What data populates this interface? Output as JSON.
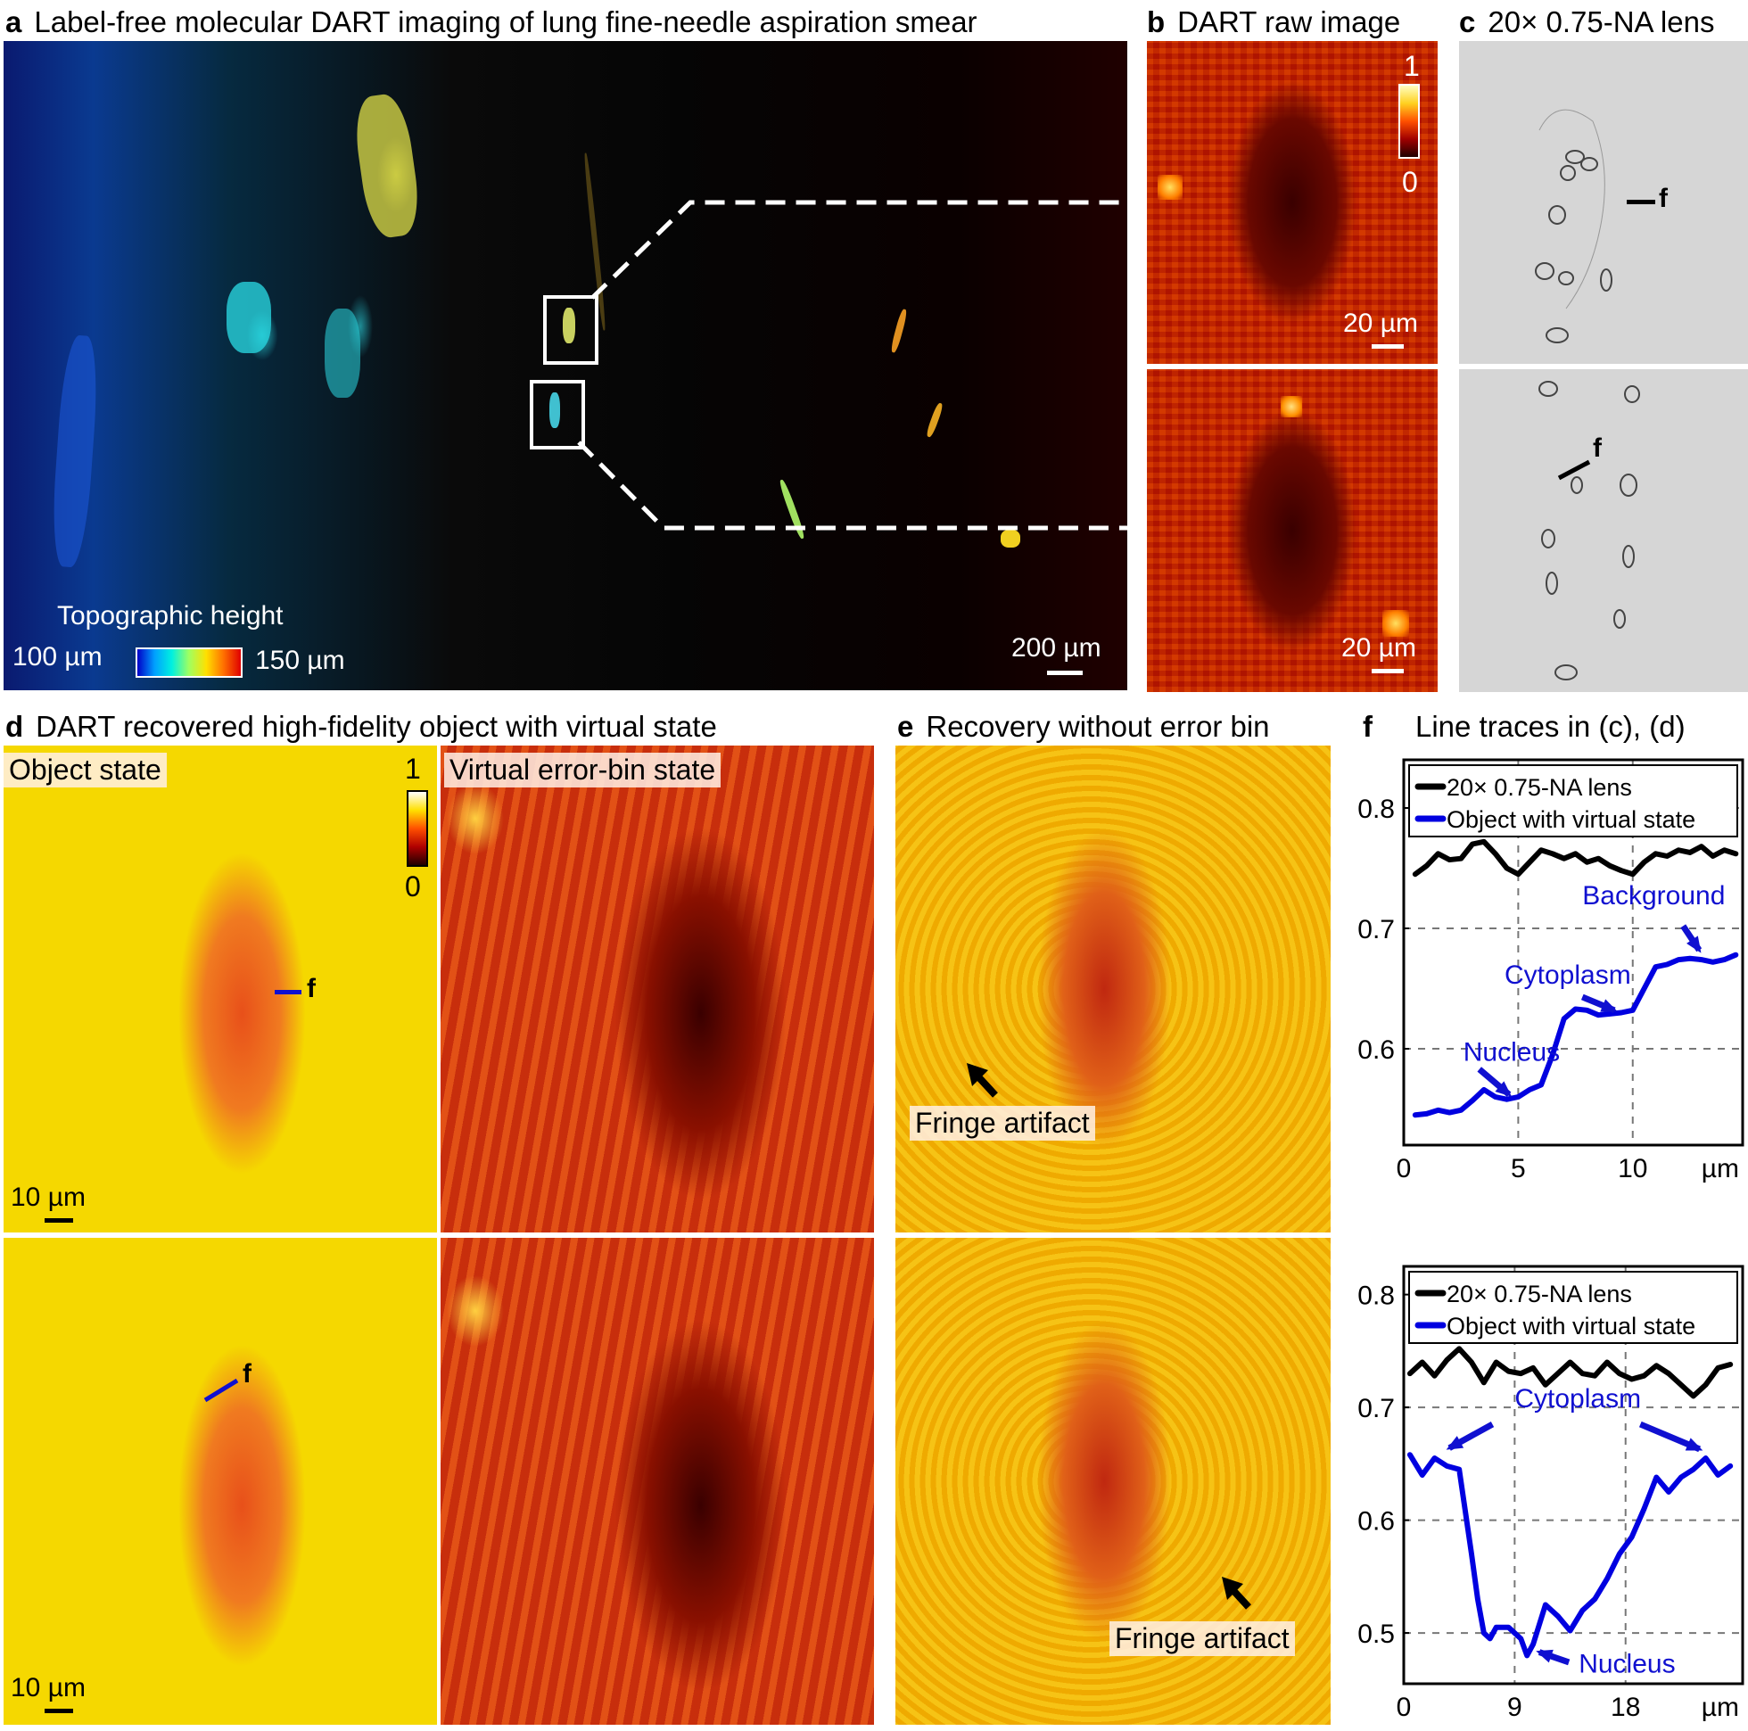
{
  "panels": {
    "a": {
      "letter": "a",
      "title": "Label-free molecular DART imaging of lung fine-needle aspiration smear",
      "colorbar_title": "Topographic height",
      "colorbar_min": "100 µm",
      "colorbar_max": "150 µm",
      "scalebar": "200 µm",
      "colormap": [
        "#0000c8",
        "#00a0ff",
        "#00f0e0",
        "#a0ff60",
        "#ffe000",
        "#ff7000",
        "#e00000"
      ]
    },
    "b": {
      "letter": "b",
      "title": "DART raw image",
      "colorbar_max": "1",
      "colorbar_min": "0",
      "scalebar_top": "20 µm",
      "scalebar_bottom": "20 µm"
    },
    "c": {
      "letter": "c",
      "title": "20× 0.75-NA lens",
      "trace_marker_top": "f",
      "trace_marker_bottom": "f"
    },
    "d": {
      "letter": "d",
      "title": "DART recovered high-fidelity object with virtual state",
      "label_object": "Object state",
      "label_virtual": "Virtual error-bin state",
      "colorbar_max": "1",
      "colorbar_min": "0",
      "scalebar_top": "10 µm",
      "scalebar_bottom": "10 µm",
      "trace_marker_top": "f",
      "trace_marker_bottom": "f"
    },
    "e": {
      "letter": "e",
      "title": "Recovery without error bin",
      "annotation_top": "Fringe artifact",
      "annotation_bottom": "Fringe artifact"
    },
    "f": {
      "letter": "f",
      "title": "Line traces in (c), (d)"
    }
  },
  "chart_data": [
    {
      "type": "line",
      "title": "Line traces in (c), (d) — top",
      "xlabel": "µm",
      "ylabel": "",
      "xlim": [
        0,
        14.8
      ],
      "ylim": [
        0.52,
        0.84
      ],
      "xticks": [
        "0",
        "5",
        "10"
      ],
      "yticks": [
        "0.6",
        "0.7",
        "0.8"
      ],
      "grid": "dashed",
      "legend": [
        "20× 0.75-NA lens",
        "Object with virtual state"
      ],
      "legend_position": "top",
      "annotations": [
        "Nucleus",
        "Cytoplasm",
        "Background"
      ],
      "series": [
        {
          "name": "20× 0.75-NA lens",
          "color": "#000000",
          "x": [
            0.5,
            1,
            1.5,
            2,
            2.5,
            3,
            3.5,
            4,
            4.5,
            5,
            5.5,
            6,
            6.5,
            7,
            7.5,
            8,
            8.5,
            9,
            9.5,
            10,
            10.5,
            11,
            11.5,
            12,
            12.5,
            13,
            13.5,
            14,
            14.5
          ],
          "values": [
            0.745,
            0.752,
            0.762,
            0.757,
            0.758,
            0.77,
            0.772,
            0.762,
            0.75,
            0.745,
            0.755,
            0.765,
            0.762,
            0.758,
            0.762,
            0.755,
            0.758,
            0.752,
            0.748,
            0.745,
            0.755,
            0.762,
            0.76,
            0.765,
            0.763,
            0.768,
            0.76,
            0.765,
            0.762
          ]
        },
        {
          "name": "Object with virtual state",
          "color": "#0000e0",
          "x": [
            0.5,
            1,
            1.5,
            2,
            2.5,
            3,
            3.5,
            4,
            4.5,
            5,
            5.5,
            6,
            6.5,
            7,
            7.5,
            8,
            8.5,
            9,
            9.5,
            10,
            10.5,
            11,
            11.5,
            12,
            12.5,
            13,
            13.5,
            14,
            14.5
          ],
          "values": [
            0.545,
            0.546,
            0.549,
            0.547,
            0.549,
            0.557,
            0.566,
            0.56,
            0.558,
            0.56,
            0.566,
            0.57,
            0.595,
            0.625,
            0.633,
            0.632,
            0.628,
            0.629,
            0.63,
            0.632,
            0.65,
            0.668,
            0.67,
            0.674,
            0.675,
            0.674,
            0.672,
            0.674,
            0.678
          ]
        }
      ]
    },
    {
      "type": "line",
      "title": "Line traces in (c), (d) — bottom",
      "xlabel": "µm",
      "ylabel": "",
      "xlim": [
        0,
        27.5
      ],
      "ylim": [
        0.455,
        0.825
      ],
      "xticks": [
        "0",
        "9",
        "18"
      ],
      "yticks": [
        "0.5",
        "0.6",
        "0.7",
        "0.8"
      ],
      "grid": "dashed",
      "legend": [
        "20× 0.75-NA lens",
        "Object with virtual state"
      ],
      "legend_position": "top",
      "annotations": [
        "Cytoplasm",
        "Nucleus"
      ],
      "series": [
        {
          "name": "20× 0.75-NA lens",
          "color": "#000000",
          "x": [
            0.5,
            1.5,
            2.5,
            3.5,
            4.5,
            5.5,
            6.5,
            7.5,
            8.5,
            9.5,
            10.5,
            11.5,
            12.5,
            13.5,
            14.5,
            15.5,
            16.5,
            17.5,
            18.5,
            19.5,
            20.5,
            21.5,
            22.5,
            23.5,
            24.5,
            25.5,
            26.5
          ],
          "values": [
            0.73,
            0.74,
            0.728,
            0.742,
            0.752,
            0.74,
            0.722,
            0.74,
            0.732,
            0.73,
            0.735,
            0.72,
            0.73,
            0.74,
            0.73,
            0.728,
            0.74,
            0.73,
            0.725,
            0.728,
            0.737,
            0.73,
            0.72,
            0.71,
            0.72,
            0.735,
            0.738
          ]
        },
        {
          "name": "Object with virtual state",
          "color": "#0000e0",
          "x": [
            0.5,
            1.5,
            2.5,
            3.5,
            4.5,
            5.5,
            6,
            6.5,
            7,
            7.5,
            8.5,
            9.5,
            10,
            10.5,
            11.5,
            12,
            12.5,
            13.5,
            14.5,
            15.5,
            16.5,
            17.5,
            18.5,
            19.5,
            20.5,
            21.5,
            22.5,
            23.5,
            24.5,
            25.5,
            26.5
          ],
          "values": [
            0.658,
            0.64,
            0.655,
            0.648,
            0.645,
            0.57,
            0.53,
            0.5,
            0.495,
            0.505,
            0.505,
            0.495,
            0.48,
            0.49,
            0.525,
            0.52,
            0.515,
            0.502,
            0.52,
            0.53,
            0.548,
            0.57,
            0.585,
            0.61,
            0.638,
            0.625,
            0.638,
            0.645,
            0.655,
            0.64,
            0.648
          ]
        }
      ]
    }
  ]
}
